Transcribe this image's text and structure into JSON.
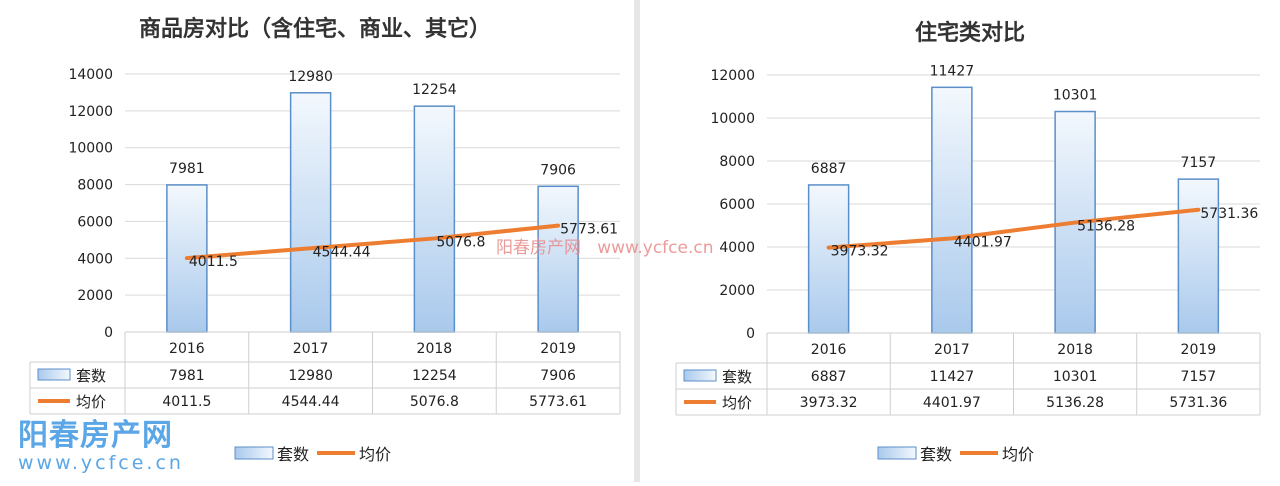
{
  "chart_data": [
    {
      "type": "bar+line",
      "title": "商品房对比（含住宅、商业、其它）",
      "categories": [
        "2016",
        "2017",
        "2018",
        "2019"
      ],
      "series": [
        {
          "name": "套数",
          "type": "bar",
          "values": [
            7981,
            12980,
            12254,
            7906
          ],
          "labels": [
            "7981",
            "12980",
            "12254",
            "7906"
          ]
        },
        {
          "name": "均价",
          "type": "line",
          "values": [
            4011.5,
            4544.44,
            5076.8,
            5773.61
          ],
          "labels": [
            "4011.5",
            "4544.44",
            "5076.8",
            "5773.61"
          ]
        }
      ],
      "ylim": [
        0,
        14000
      ],
      "yticks": [
        "0",
        "2000",
        "4000",
        "6000",
        "8000",
        "10000",
        "12000",
        "14000"
      ],
      "grid": true,
      "data_table": true,
      "legend": "bottom"
    },
    {
      "type": "bar+line",
      "title": "住宅类对比",
      "categories": [
        "2016",
        "2017",
        "2018",
        "2019"
      ],
      "series": [
        {
          "name": "套数",
          "type": "bar",
          "values": [
            6887,
            11427,
            10301,
            7157
          ],
          "labels": [
            "6887",
            "11427",
            "10301",
            "7157"
          ]
        },
        {
          "name": "均价",
          "type": "line",
          "values": [
            3973.32,
            4401.97,
            5136.28,
            5731.36
          ],
          "labels": [
            "3973.32",
            "4401.97",
            "5136.28",
            "5731.36"
          ]
        }
      ],
      "ylim": [
        0,
        12000
      ],
      "yticks": [
        "0",
        "2000",
        "4000",
        "6000",
        "8000",
        "10000",
        "12000"
      ],
      "grid": true,
      "data_table": true,
      "legend": "bottom"
    }
  ],
  "colors": {
    "bar_edge": "#5b8fc9",
    "bar_fill_top": "#f3f8fd",
    "bar_fill_bottom": "#a9c9ec",
    "line": "#ed7d31",
    "grid": "#d9d9d9"
  },
  "watermark": {
    "logo_name": "阳春房产网",
    "logo_url": "www.ycfce.cn",
    "overlay": "阳春房产网   www.ycfce.cn"
  }
}
